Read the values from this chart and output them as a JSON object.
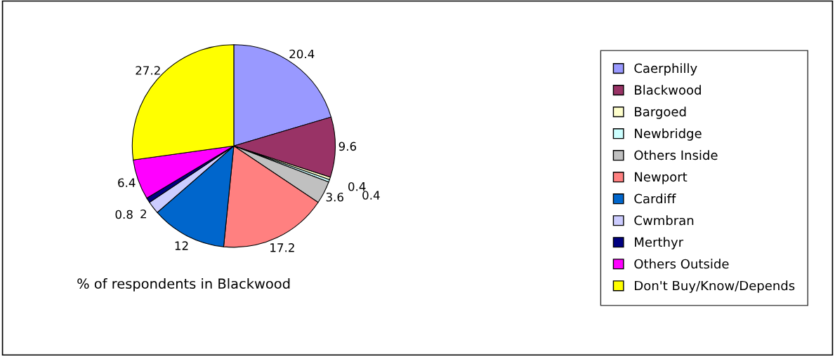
{
  "chart_data": {
    "type": "pie",
    "title": "% of respondents in Blackwood",
    "categories": [
      "Caerphilly",
      "Blackwood",
      "Bargoed",
      "Newbridge",
      "Others Inside",
      "Newport",
      "Cardiff",
      "Cwmbran",
      "Merthyr",
      "Others Outside",
      "Don't Buy/Know/Depends"
    ],
    "values": [
      20.4,
      9.6,
      0.4,
      0.4,
      3.6,
      17.2,
      12,
      2,
      0.8,
      6.4,
      27.2
    ],
    "colors": [
      "#9999ff",
      "#993366",
      "#ffffcc",
      "#ccffff",
      "#c0c0c0",
      "#ff8080",
      "#0066cc",
      "#ccccff",
      "#000080",
      "#ff00ff",
      "#ffff00"
    ],
    "data_labels": true,
    "legend": "right"
  }
}
